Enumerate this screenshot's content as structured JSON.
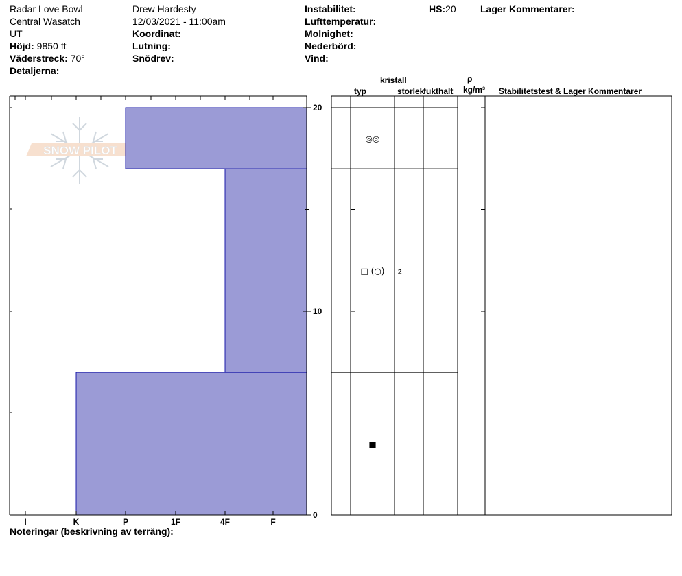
{
  "header": {
    "location": "Radar Love Bowl",
    "range": "Central Wasatch",
    "state": "UT",
    "elevation_label": "Höjd:",
    "elevation_value": "9850 ft",
    "aspect_label": "Väderstreck:",
    "aspect_value": "70°",
    "details_label": "Detaljerna:",
    "observer": "Drew Hardesty",
    "datetime": "12/03/2021 - 11:00am",
    "coord_label": "Koordinat:",
    "slope_label": "Lutning:",
    "wind_loading_label": "Snödrev:",
    "instability_label": "Instabilitet:",
    "air_temp_label": "Lufttemperatur:",
    "sky_label": "Molnighet:",
    "precip_label": "Nederbörd:",
    "wind_label": "Vind:",
    "hs_label": "HS:",
    "hs_value": "20",
    "layer_comments_label": "Lager Kommentarer:"
  },
  "columns": {
    "crystal": "kristall",
    "type": "typ",
    "size": "storlek",
    "moisture": "fukthalt",
    "rho": "ρ",
    "density_unit": "kg/m³",
    "stability": "Stabilitetstest & Lager Kommentarer"
  },
  "notes_label": "Noteringar (beskrivning av terräng):",
  "logo_text": "SNOW PILOT",
  "colors": {
    "layer_fill": "#9b9bd6",
    "layer_stroke": "#1a1aa8"
  },
  "chart_data": {
    "type": "bar",
    "title": "",
    "xlabel": "",
    "ylabel": "",
    "hardness_scale": [
      "I",
      "K",
      "P",
      "1F",
      "4F",
      "F"
    ],
    "ylim": [
      0,
      20
    ],
    "y_ticks": [
      0,
      10,
      20
    ],
    "layers": [
      {
        "bottom": 0,
        "top": 7,
        "hardness": "K",
        "grain_symbol": "■",
        "size": ""
      },
      {
        "bottom": 7,
        "top": 17,
        "hardness": "4F",
        "grain_symbol": "□ (○)",
        "size": "2"
      },
      {
        "bottom": 17,
        "top": 20,
        "hardness": "P",
        "grain_symbol": "◎◎",
        "size": ""
      }
    ]
  }
}
